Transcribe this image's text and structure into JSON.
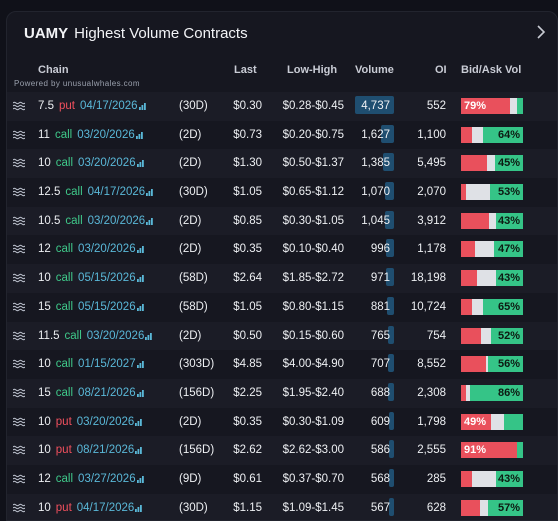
{
  "header": {
    "ticker": "UAMY",
    "subtitle": "Highest Volume Contracts",
    "powered_by": "Powered by unusualwhales.com"
  },
  "columns": {
    "chain": "Chain",
    "last": "Last",
    "low_high": "Low-High",
    "volume": "Volume",
    "oi": "OI",
    "bid_ask": "Bid/Ask Vol"
  },
  "rows": [
    {
      "strike": "7.5",
      "type": "put",
      "exp": "04/17/2026",
      "dte": "(30D)",
      "last": "$0.30",
      "lowhigh": "$0.28-$0.45",
      "volume": "4,737",
      "vol_fraction": 1.0,
      "oi": "552",
      "bid_pct": 79,
      "mid_pct": 12,
      "ask_pct": 9,
      "label": "79%",
      "label_side": "left"
    },
    {
      "strike": "11",
      "type": "call",
      "exp": "03/20/2026",
      "dte": "(2D)",
      "last": "$0.73",
      "lowhigh": "$0.20-$0.75",
      "volume": "1,627",
      "vol_fraction": 0.34,
      "oi": "1,100",
      "bid_pct": 18,
      "mid_pct": 18,
      "ask_pct": 64,
      "label": "64%",
      "label_side": "right"
    },
    {
      "strike": "10",
      "type": "call",
      "exp": "03/20/2026",
      "dte": "(2D)",
      "last": "$1.30",
      "lowhigh": "$0.50-$1.37",
      "volume": "1,385",
      "vol_fraction": 0.29,
      "oi": "5,495",
      "bid_pct": 42,
      "mid_pct": 13,
      "ask_pct": 45,
      "label": "45%",
      "label_side": "right"
    },
    {
      "strike": "12.5",
      "type": "call",
      "exp": "04/17/2026",
      "dte": "(30D)",
      "last": "$1.05",
      "lowhigh": "$0.65-$1.12",
      "volume": "1,070",
      "vol_fraction": 0.23,
      "oi": "2,070",
      "bid_pct": 8,
      "mid_pct": 39,
      "ask_pct": 53,
      "label": "53%",
      "label_side": "right"
    },
    {
      "strike": "10.5",
      "type": "call",
      "exp": "03/20/2026",
      "dte": "(2D)",
      "last": "$0.85",
      "lowhigh": "$0.30-$1.05",
      "volume": "1,045",
      "vol_fraction": 0.22,
      "oi": "3,912",
      "bid_pct": 45,
      "mid_pct": 12,
      "ask_pct": 43,
      "label": "43%",
      "label_side": "right"
    },
    {
      "strike": "12",
      "type": "call",
      "exp": "03/20/2026",
      "dte": "(2D)",
      "last": "$0.35",
      "lowhigh": "$0.10-$0.40",
      "volume": "996",
      "vol_fraction": 0.21,
      "oi": "1,178",
      "bid_pct": 22,
      "mid_pct": 31,
      "ask_pct": 47,
      "label": "47%",
      "label_side": "right"
    },
    {
      "strike": "10",
      "type": "call",
      "exp": "05/15/2026",
      "dte": "(58D)",
      "last": "$2.64",
      "lowhigh": "$1.85-$2.72",
      "volume": "971",
      "vol_fraction": 0.2,
      "oi": "18,198",
      "bid_pct": 25,
      "mid_pct": 32,
      "ask_pct": 43,
      "label": "43%",
      "label_side": "right"
    },
    {
      "strike": "15",
      "type": "call",
      "exp": "05/15/2026",
      "dte": "(58D)",
      "last": "$1.05",
      "lowhigh": "$0.80-$1.15",
      "volume": "881",
      "vol_fraction": 0.19,
      "oi": "10,724",
      "bid_pct": 18,
      "mid_pct": 17,
      "ask_pct": 65,
      "label": "65%",
      "label_side": "right"
    },
    {
      "strike": "11.5",
      "type": "call",
      "exp": "03/20/2026",
      "dte": "(2D)",
      "last": "$0.50",
      "lowhigh": "$0.15-$0.60",
      "volume": "765",
      "vol_fraction": 0.16,
      "oi": "754",
      "bid_pct": 33,
      "mid_pct": 15,
      "ask_pct": 52,
      "label": "52%",
      "label_side": "right"
    },
    {
      "strike": "10",
      "type": "call",
      "exp": "01/15/2027",
      "dte": "(303D)",
      "last": "$4.85",
      "lowhigh": "$4.00-$4.90",
      "volume": "707",
      "vol_fraction": 0.15,
      "oi": "8,552",
      "bid_pct": 40,
      "mid_pct": 4,
      "ask_pct": 56,
      "label": "56%",
      "label_side": "right"
    },
    {
      "strike": "15",
      "type": "call",
      "exp": "08/21/2026",
      "dte": "(156D)",
      "last": "$2.25",
      "lowhigh": "$1.95-$2.40",
      "volume": "688",
      "vol_fraction": 0.15,
      "oi": "2,308",
      "bid_pct": 8,
      "mid_pct": 6,
      "ask_pct": 86,
      "label": "86%",
      "label_side": "right"
    },
    {
      "strike": "10",
      "type": "put",
      "exp": "03/20/2026",
      "dte": "(2D)",
      "last": "$0.35",
      "lowhigh": "$0.30-$1.09",
      "volume": "609",
      "vol_fraction": 0.13,
      "oi": "1,798",
      "bid_pct": 49,
      "mid_pct": 21,
      "ask_pct": 30,
      "label": "49%",
      "label_side": "left"
    },
    {
      "strike": "10",
      "type": "put",
      "exp": "08/21/2026",
      "dte": "(156D)",
      "last": "$2.62",
      "lowhigh": "$2.62-$3.00",
      "volume": "586",
      "vol_fraction": 0.12,
      "oi": "2,555",
      "bid_pct": 91,
      "mid_pct": 0,
      "ask_pct": 9,
      "label": "91%",
      "label_side": "left"
    },
    {
      "strike": "12",
      "type": "call",
      "exp": "03/27/2026",
      "dte": "(9D)",
      "last": "$0.61",
      "lowhigh": "$0.37-$0.70",
      "volume": "568",
      "vol_fraction": 0.12,
      "oi": "285",
      "bid_pct": 18,
      "mid_pct": 39,
      "ask_pct": 43,
      "label": "43%",
      "label_side": "right"
    },
    {
      "strike": "10",
      "type": "put",
      "exp": "04/17/2026",
      "dte": "(30D)",
      "last": "$1.15",
      "lowhigh": "$1.09-$1.45",
      "volume": "567",
      "vol_fraction": 0.12,
      "oi": "628",
      "bid_pct": 30,
      "mid_pct": 13,
      "ask_pct": 57,
      "label": "57%",
      "label_side": "right"
    }
  ],
  "colors": {
    "call": "#3fc98a",
    "put": "#f2505e",
    "expiry": "#5ab8d8",
    "volume_bar": "#1f4e70",
    "bid": "#e9505c",
    "ask": "#35c487",
    "mid": "#dfe1e6"
  }
}
